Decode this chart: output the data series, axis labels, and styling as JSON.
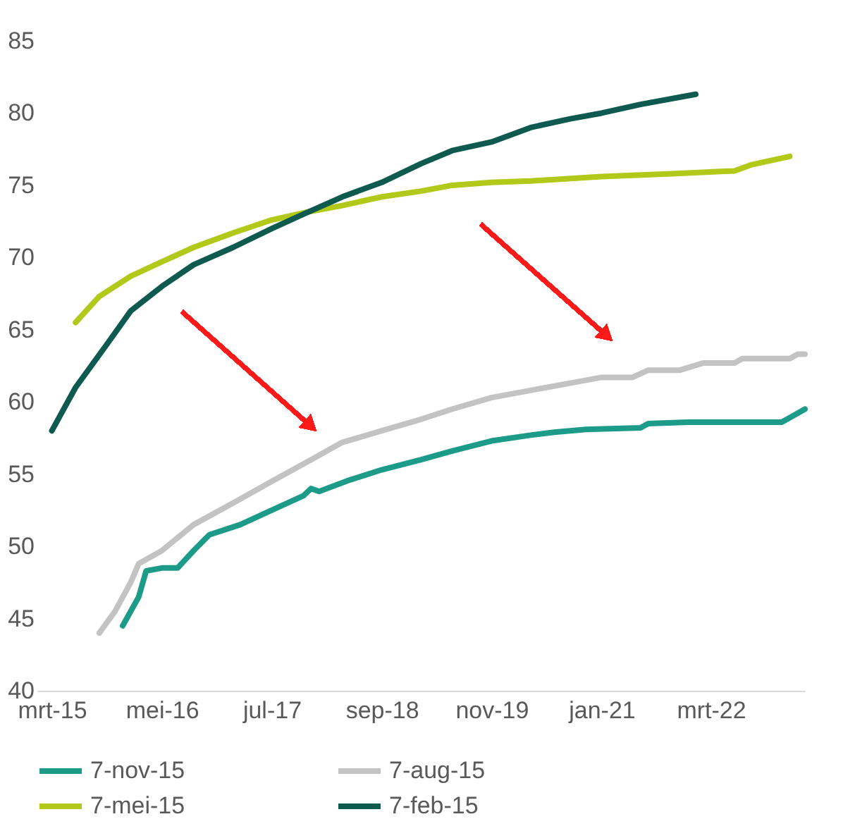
{
  "chart_data": {
    "type": "line",
    "xlim": [
      "2015-01",
      "2023-03"
    ],
    "xticks": [
      {
        "value": "2015-03",
        "label": "mrt-15"
      },
      {
        "value": "2016-05",
        "label": "mei-16"
      },
      {
        "value": "2017-07",
        "label": "jul-17"
      },
      {
        "value": "2018-09",
        "label": "sep-18"
      },
      {
        "value": "2019-11",
        "label": "nov-19"
      },
      {
        "value": "2021-01",
        "label": "jan-21"
      },
      {
        "value": "2022-03",
        "label": "mrt-22"
      }
    ],
    "ylim": [
      40,
      85
    ],
    "yticks": [
      40,
      45,
      50,
      55,
      60,
      65,
      70,
      75,
      80,
      85
    ],
    "grid": false,
    "legend": "bottom",
    "marker": "none",
    "line_style": "solid",
    "series": [
      {
        "name": "7-nov-15",
        "color": "#1b9b88",
        "x": [
          "2015-12",
          "2016-02",
          "2016-03",
          "2016-05",
          "2016-07",
          "2016-09",
          "2016-11",
          "2017-03",
          "2017-07",
          "2017-11",
          "2017-12",
          "2018-01",
          "2018-05",
          "2018-09",
          "2019-02",
          "2019-06",
          "2019-11",
          "2020-04",
          "2020-07",
          "2020-11",
          "2021-06",
          "2021-07",
          "2021-12",
          "2022-12",
          "2023-03"
        ],
        "values": [
          44.5,
          46.5,
          48.3,
          48.5,
          48.5,
          49.7,
          50.8,
          51.5,
          52.5,
          53.5,
          54,
          53.8,
          54.6,
          55.3,
          56,
          56.6,
          57.3,
          57.7,
          57.9,
          58.1,
          58.2,
          58.5,
          58.6,
          58.6,
          59.5
        ]
      },
      {
        "name": "7-aug-15",
        "color": "#c3c3c3",
        "x": [
          "2015-09",
          "2015-11",
          "2016-01",
          "2016-02",
          "2016-05",
          "2016-09",
          "2017-02",
          "2017-07",
          "2017-12",
          "2018-04",
          "2018-09",
          "2019-02",
          "2019-06",
          "2019-11",
          "2020-04",
          "2020-09",
          "2021-01",
          "2021-05",
          "2021-07",
          "2021-11",
          "2022-02",
          "2022-06",
          "2022-07",
          "2023-01",
          "2023-02",
          "2023-03"
        ],
        "values": [
          44,
          45.5,
          47.5,
          48.8,
          49.7,
          51.5,
          53,
          54.5,
          56,
          57.2,
          58,
          58.8,
          59.5,
          60.3,
          60.8,
          61.3,
          61.7,
          61.7,
          62.2,
          62.2,
          62.7,
          62.7,
          63,
          63,
          63.3,
          63.3
        ]
      },
      {
        "name": "7-mei-15",
        "color": "#b3c91a",
        "x": [
          "2015-06",
          "2015-09",
          "2016-01",
          "2016-05",
          "2016-09",
          "2017-02",
          "2017-07",
          "2017-12",
          "2018-04",
          "2018-09",
          "2019-02",
          "2019-06",
          "2019-11",
          "2020-04",
          "2021-01",
          "2021-10",
          "2022-06",
          "2022-08",
          "2023-01"
        ],
        "values": [
          65.5,
          67.3,
          68.7,
          69.7,
          70.7,
          71.7,
          72.6,
          73.2,
          73.6,
          74.2,
          74.6,
          75,
          75.2,
          75.3,
          75.6,
          75.8,
          76,
          76.4,
          77
        ]
      },
      {
        "name": "7-feb-15",
        "color": "#0f5a4f",
        "x": [
          "2015-03",
          "2015-06",
          "2015-10",
          "2016-01",
          "2016-05",
          "2016-09",
          "2017-02",
          "2017-07",
          "2017-11",
          "2018-04",
          "2018-09",
          "2019-02",
          "2019-06",
          "2019-11",
          "2020-04",
          "2020-09",
          "2021-01",
          "2021-06",
          "2022-01"
        ],
        "values": [
          58,
          61,
          64,
          66.3,
          68,
          69.5,
          70.7,
          72,
          73,
          74.2,
          75.2,
          76.5,
          77.4,
          78,
          79,
          79.6,
          80,
          80.6,
          81.3
        ]
      }
    ]
  }
}
